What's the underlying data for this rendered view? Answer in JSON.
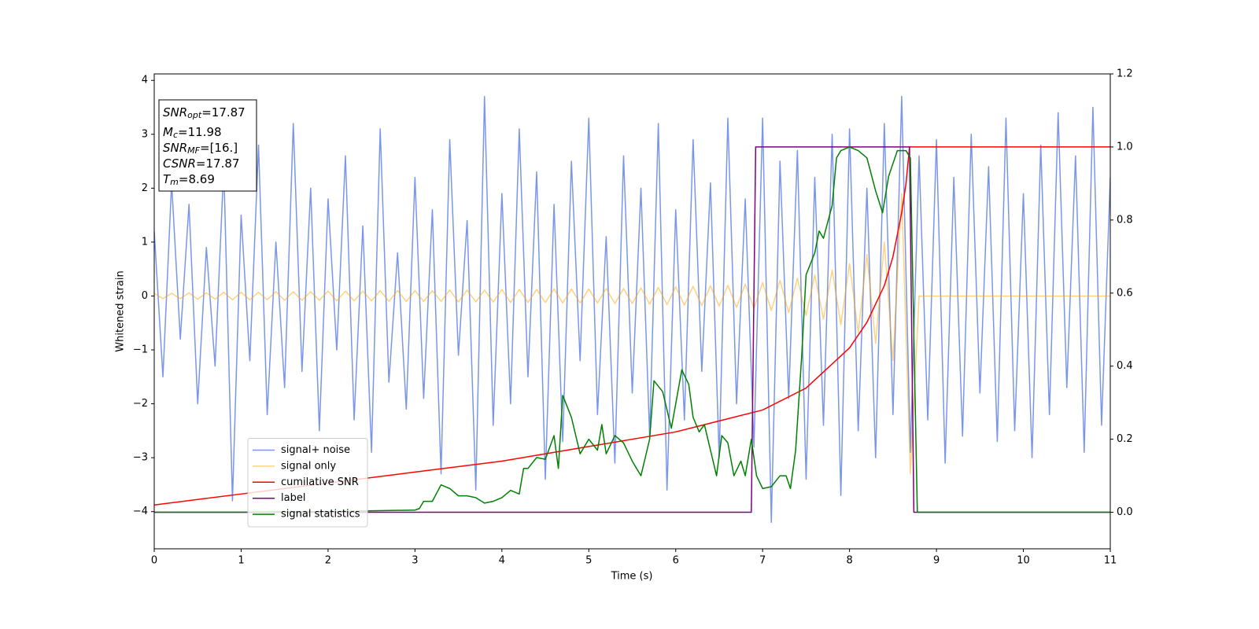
{
  "chart_data": {
    "type": "line",
    "xlabel": "Time (s)",
    "ylabel": "Whitened strain",
    "xlim": [
      0,
      11
    ],
    "ylim": [
      -4.69,
      4.12
    ],
    "y2lim": [
      -0.1,
      1.2
    ],
    "xticks": [
      0,
      1,
      2,
      3,
      4,
      5,
      6,
      7,
      8,
      9,
      10,
      11
    ],
    "yticks": [
      {
        "value": -4,
        "label": "−4"
      },
      {
        "value": -3,
        "label": "−3"
      },
      {
        "value": -2,
        "label": "−2"
      },
      {
        "value": -1,
        "label": "−1"
      },
      0,
      1,
      2,
      3,
      4
    ],
    "y2ticks": [
      {
        "value": 0,
        "label": "0.0"
      },
      0.2,
      0.4,
      0.6,
      0.8,
      {
        "value": 1,
        "label": "1.0"
      },
      1.2
    ],
    "grid": false,
    "legend": "lower left",
    "annotations": [
      {
        "symbol": "SNR",
        "subscript": "opt",
        "rest": "=17.87"
      },
      {
        "symbol": "M",
        "subscript": "c",
        "rest": "=11.98"
      },
      {
        "symbol": "SNR",
        "subscript": "MF",
        "rest": "=[16.]"
      },
      {
        "symbol": "CSNR",
        "rest": "=17.87"
      },
      {
        "symbol": "T",
        "subscript": "m",
        "rest": "=8.69"
      }
    ],
    "x": [
      0,
      0.1,
      0.2,
      0.3,
      0.4,
      0.5,
      0.6,
      0.7,
      0.8,
      0.9,
      1,
      1.1,
      1.2,
      1.3,
      1.4,
      1.5,
      1.6,
      1.7,
      1.8,
      1.9,
      2,
      2.1,
      2.2,
      2.3,
      2.4,
      2.5,
      2.6,
      2.7,
      2.8,
      2.9,
      3,
      3.1,
      3.2,
      3.3,
      3.4,
      3.5,
      3.6,
      3.7,
      3.8,
      3.9,
      4,
      4.1,
      4.2,
      4.3,
      4.4,
      4.5,
      4.6,
      4.7,
      4.8,
      4.9,
      5,
      5.1,
      5.2,
      5.3,
      5.4,
      5.5,
      5.6,
      5.7,
      5.8,
      5.9,
      6,
      6.1,
      6.2,
      6.3,
      6.4,
      6.5,
      6.6,
      6.7,
      6.8,
      6.9,
      7,
      7.1,
      7.2,
      7.3,
      7.4,
      7.5,
      7.6,
      7.7,
      7.8,
      7.9,
      8,
      8.1,
      8.2,
      8.3,
      8.4,
      8.5,
      8.6,
      8.7,
      8.8,
      8.9,
      9,
      9.1,
      9.2,
      9.3,
      9.4,
      9.5,
      9.6,
      9.7,
      9.8,
      9.9,
      10,
      10.1,
      10.2,
      10.3,
      10.4,
      10.5,
      10.6,
      10.7,
      10.8,
      10.9,
      11
    ],
    "series": [
      {
        "name": "signal+ noise",
        "color": "#4169e1",
        "opacity": 0.7,
        "values": [
          1.2,
          -1.5,
          2.1,
          -0.8,
          1.7,
          -2.0,
          0.9,
          -1.3,
          2.4,
          -3.8,
          1.5,
          -1.2,
          2.8,
          -2.2,
          1.0,
          -1.7,
          3.2,
          -1.4,
          2.0,
          -2.5,
          1.8,
          -1.0,
          2.6,
          -2.3,
          1.3,
          -2.9,
          3.1,
          -1.6,
          0.8,
          -2.1,
          2.2,
          -1.9,
          1.6,
          -3.3,
          2.9,
          -1.1,
          1.4,
          -3.6,
          3.7,
          -2.4,
          1.9,
          -2.0,
          3.1,
          -1.5,
          2.3,
          -3.4,
          1.7,
          -2.7,
          2.5,
          -1.2,
          3.3,
          -2.2,
          1.1,
          -3.1,
          2.6,
          -1.8,
          2.0,
          -2.6,
          3.2,
          -3.6,
          1.6,
          -2.3,
          2.9,
          -1.4,
          2.1,
          -3.0,
          3.3,
          -2.0,
          1.8,
          -2.8,
          3.3,
          -4.2,
          2.5,
          -1.9,
          2.7,
          -3.4,
          2.2,
          -2.4,
          3.0,
          -3.7,
          3.1,
          -2.5,
          2.0,
          -3.0,
          3.2,
          -2.2,
          3.7,
          -2.9,
          2.6,
          -2.3,
          2.9,
          -3.1,
          2.2,
          -2.6,
          3.0,
          -1.8,
          2.4,
          -2.7,
          3.3,
          -2.5,
          1.9,
          -3.0,
          2.8,
          -2.2,
          3.4,
          -1.7,
          2.6,
          -2.9,
          3.5,
          -2.4,
          2.2
        ]
      },
      {
        "name": "signal only",
        "color": "#ffa500",
        "opacity": 0.5,
        "values": [
          0.05,
          -0.05,
          0.05,
          -0.05,
          0.06,
          -0.06,
          0.06,
          -0.06,
          0.07,
          -0.07,
          0.07,
          -0.07,
          0.07,
          -0.07,
          0.08,
          -0.08,
          0.08,
          -0.08,
          0.08,
          -0.08,
          0.09,
          -0.09,
          0.09,
          -0.09,
          0.09,
          -0.09,
          0.1,
          -0.1,
          0.1,
          -0.1,
          0.1,
          -0.1,
          0.1,
          -0.1,
          0.11,
          -0.11,
          0.11,
          -0.11,
          0.11,
          -0.11,
          0.12,
          -0.12,
          0.12,
          -0.12,
          0.12,
          -0.12,
          0.13,
          -0.13,
          0.13,
          -0.13,
          0.13,
          -0.13,
          0.14,
          -0.14,
          0.14,
          -0.14,
          0.15,
          -0.15,
          0.16,
          -0.16,
          0.17,
          -0.17,
          0.18,
          -0.18,
          0.19,
          -0.19,
          0.2,
          -0.21,
          0.22,
          -0.23,
          0.25,
          -0.27,
          0.29,
          -0.31,
          0.33,
          -0.36,
          0.39,
          -0.43,
          0.48,
          -0.53,
          0.6,
          -0.68,
          0.77,
          -0.88,
          1.0,
          -1.2,
          1.9,
          -3.3,
          0,
          0,
          0,
          0,
          0,
          0,
          0,
          0,
          0,
          0,
          0,
          0,
          0,
          0,
          0,
          0,
          0,
          0,
          0,
          0,
          0,
          0,
          0
        ]
      },
      {
        "name": "cumilative SNR",
        "color": "#ff0000",
        "axis": "y2",
        "x": [
          0,
          1,
          2,
          3,
          4,
          5,
          6,
          6.5,
          7,
          7.5,
          8,
          8.2,
          8.4,
          8.5,
          8.6,
          8.65,
          8.69,
          11
        ],
        "values": [
          0.02,
          0.05,
          0.08,
          0.11,
          0.14,
          0.18,
          0.22,
          0.25,
          0.28,
          0.34,
          0.45,
          0.52,
          0.62,
          0.7,
          0.82,
          0.9,
          1.0,
          1.0
        ]
      },
      {
        "name": "label",
        "color": "#800080",
        "axis": "y2",
        "x": [
          0,
          6.87,
          6.92,
          8.69,
          8.74,
          11
        ],
        "values": [
          0,
          0,
          1,
          1,
          0,
          0
        ]
      },
      {
        "name": "signal statistics",
        "color": "#008000",
        "axis": "y2",
        "x": [
          0,
          1,
          2,
          3,
          3.05,
          3.1,
          3.2,
          3.3,
          3.4,
          3.5,
          3.6,
          3.7,
          3.8,
          3.9,
          4.0,
          4.1,
          4.2,
          4.25,
          4.3,
          4.4,
          4.5,
          4.6,
          4.65,
          4.7,
          4.8,
          4.9,
          5.0,
          5.1,
          5.15,
          5.2,
          5.3,
          5.4,
          5.5,
          5.6,
          5.7,
          5.75,
          5.85,
          5.95,
          6.07,
          6.15,
          6.2,
          6.27,
          6.33,
          6.4,
          6.47,
          6.53,
          6.6,
          6.67,
          6.75,
          6.8,
          6.87,
          6.93,
          7.0,
          7.1,
          7.2,
          7.27,
          7.32,
          7.38,
          7.45,
          7.5,
          7.6,
          7.65,
          7.7,
          7.8,
          7.85,
          7.9,
          8.0,
          8.1,
          8.2,
          8.3,
          8.38,
          8.45,
          8.55,
          8.65,
          8.7,
          8.78,
          11
        ],
        "values": [
          0,
          0,
          0.002,
          0.006,
          0.01,
          0.03,
          0.03,
          0.075,
          0.065,
          0.045,
          0.045,
          0.04,
          0.025,
          0.03,
          0.04,
          0.06,
          0.05,
          0.12,
          0.12,
          0.15,
          0.145,
          0.21,
          0.12,
          0.32,
          0.26,
          0.16,
          0.2,
          0.17,
          0.24,
          0.16,
          0.21,
          0.19,
          0.14,
          0.1,
          0.2,
          0.36,
          0.33,
          0.23,
          0.39,
          0.35,
          0.26,
          0.22,
          0.24,
          0.17,
          0.1,
          0.21,
          0.19,
          0.1,
          0.14,
          0.1,
          0.2,
          0.1,
          0.065,
          0.07,
          0.1,
          0.1,
          0.065,
          0.17,
          0.43,
          0.65,
          0.71,
          0.77,
          0.75,
          0.84,
          0.97,
          0.99,
          1.0,
          0.99,
          0.97,
          0.88,
          0.82,
          0.92,
          0.99,
          0.99,
          0.97,
          0,
          0
        ]
      }
    ]
  }
}
